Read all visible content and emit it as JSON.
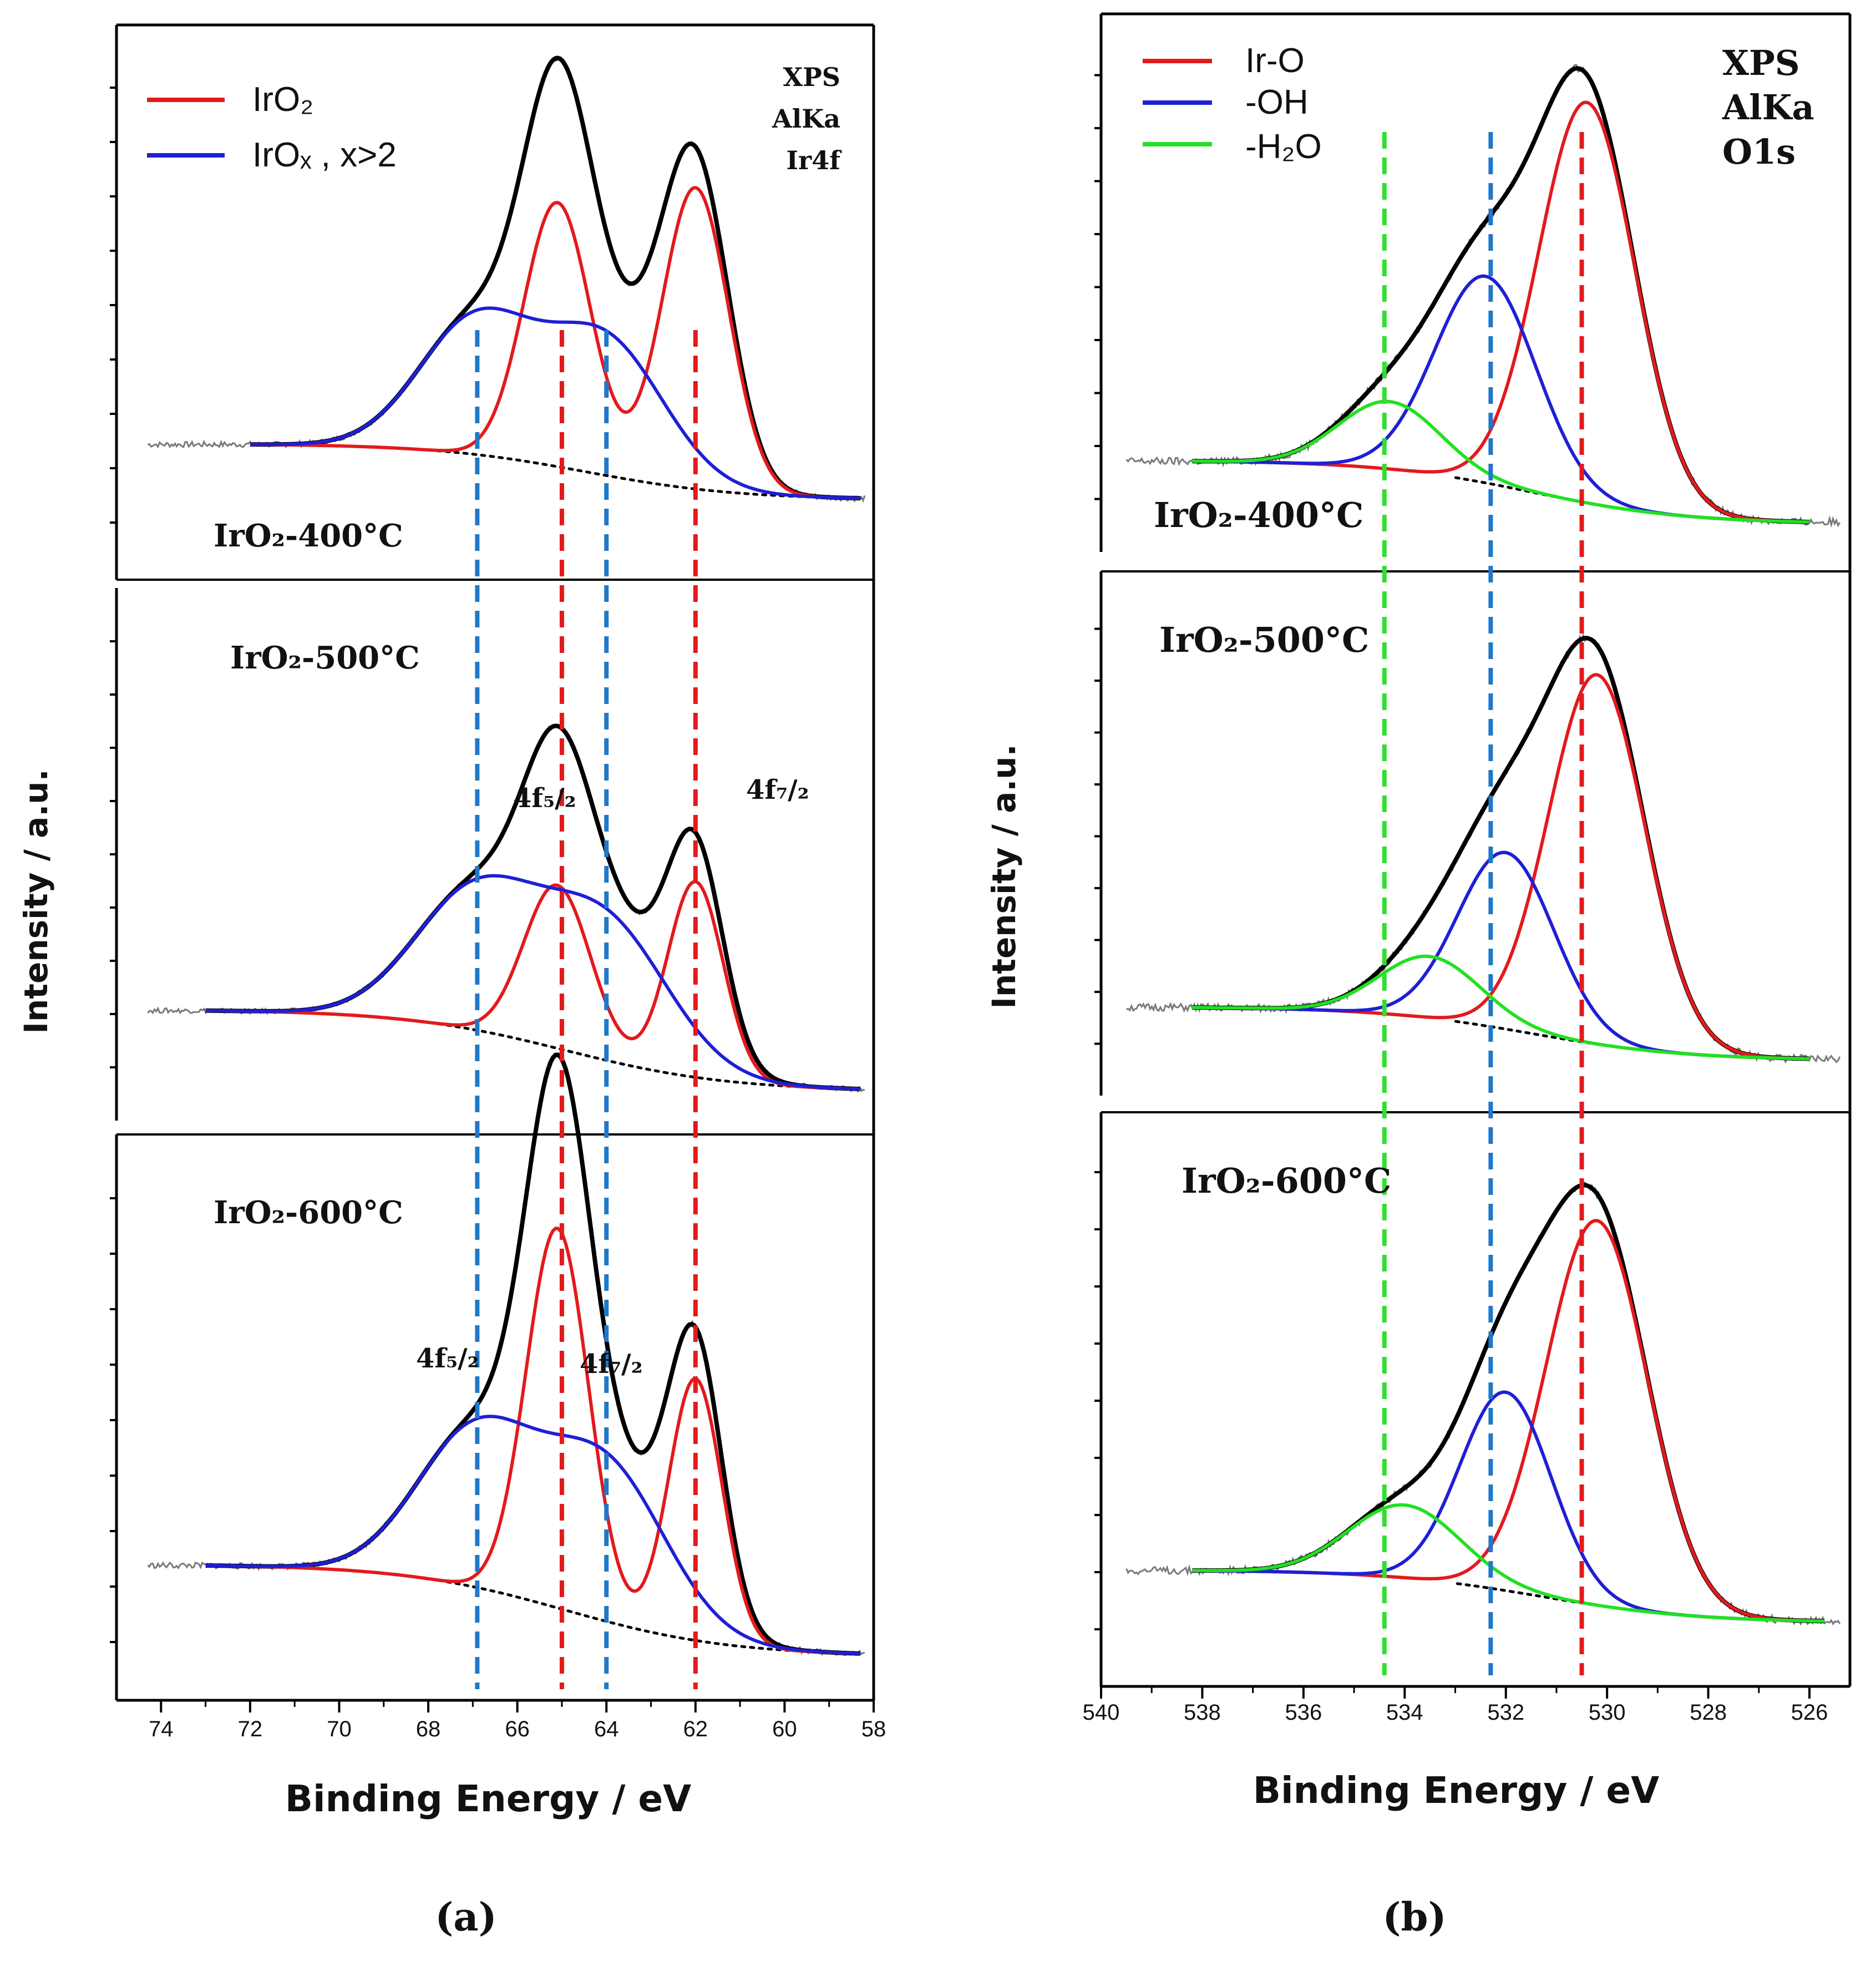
{
  "colors": {
    "irO2": "#e31a1c",
    "irOx": "#1f1fd6",
    "envelope": "#000000",
    "raw": "#7a7a7a",
    "background": "#000000",
    "ref_red": "#e31a1c",
    "ref_blue": "#1f78c8",
    "ref_green": "#33dd33",
    "ir_o": "#e31a1c",
    "oh": "#1f1fd6",
    "h2o": "#22e022"
  },
  "panel_a": {
    "caption": "(a)",
    "ylabel": "Intensity / a.u.",
    "xlabel": "Binding Energy / eV",
    "legend": [
      {
        "key": "irO2",
        "label": "IrO₂"
      },
      {
        "key": "irOx",
        "label": "IrOₓ , x>2"
      }
    ],
    "info": [
      "XPS",
      "AlKa",
      "Ir4f"
    ],
    "xticks": [
      "74",
      "72",
      "70",
      "68",
      "66",
      "64",
      "62",
      "60",
      "58"
    ],
    "subpanels": [
      {
        "label": "IrO₂-400°C"
      },
      {
        "label": "IrO₂-500°C",
        "peak_labels": [
          "4f₅/₂",
          "4f₇/₂"
        ]
      },
      {
        "label": "IrO₂-600°C",
        "peak_labels": [
          "4f₅/₂",
          "4f₇/₂"
        ]
      }
    ]
  },
  "panel_b": {
    "caption": "(b)",
    "ylabel": "Intensity / a.u.",
    "xlabel": "Binding Energy / eV",
    "legend": [
      {
        "key": "ir_o",
        "label": "Ir-O"
      },
      {
        "key": "oh",
        "label": "-OH"
      },
      {
        "key": "h2o",
        "label": "-H₂O"
      }
    ],
    "info": [
      "XPS",
      "AlKa",
      "O1s"
    ],
    "xticks": [
      "540",
      "538",
      "536",
      "534",
      "532",
      "530",
      "528",
      "526"
    ],
    "subpanels": [
      {
        "label": "IrO₂-400°C"
      },
      {
        "label": "IrO₂-500°C"
      },
      {
        "label": "IrO₂-600°C"
      }
    ]
  },
  "chart_data": [
    {
      "type": "line",
      "title": "XPS AlKa Ir4f",
      "xlabel": "Binding Energy / eV",
      "ylabel": "Intensity / a.u.",
      "xlim": [
        75,
        58
      ],
      "reference_lines_eV": [
        {
          "x": 66.9,
          "color": "blue"
        },
        {
          "x": 65.0,
          "color": "red"
        },
        {
          "x": 64.0,
          "color": "blue"
        },
        {
          "x": 62.0,
          "color": "red"
        }
      ],
      "subplots": [
        {
          "name": "IrO₂-400°C",
          "x_range": [
            72,
            58.3
          ],
          "base": 0.05,
          "tail": -0.18,
          "peaks": [
            {
              "series": "IrO₂",
              "center": 65.1,
              "height": 0.85,
              "width": 0.75
            },
            {
              "series": "IrO₂",
              "center": 62.0,
              "height": 0.97,
              "width": 0.75
            },
            {
              "series": "IrOₓ , x>2",
              "center": 66.9,
              "height": 0.43,
              "width": 1.3
            },
            {
              "series": "IrOₓ , x>2",
              "center": 64.0,
              "height": 0.43,
              "width": 1.3
            }
          ]
        },
        {
          "name": "IrO₂-500°C",
          "x_range": [
            73,
            58.3
          ],
          "base": 0.0,
          "tail": -0.3,
          "peaks": [
            {
              "series": "IrO₂",
              "center": 65.1,
              "height": 0.6,
              "width": 0.75
            },
            {
              "series": "IrO₂",
              "center": 62.0,
              "height": 0.72,
              "width": 0.62
            },
            {
              "series": "IrOₓ , x>2",
              "center": 66.9,
              "height": 0.5,
              "width": 1.4
            },
            {
              "series": "IrOₓ , x>2",
              "center": 64.0,
              "height": 0.5,
              "width": 1.4
            }
          ]
        },
        {
          "name": "IrO₂-600°C",
          "x_range": [
            73,
            58.3
          ],
          "base": 0.0,
          "tail": -0.28,
          "peaks": [
            {
              "series": "IrO₂",
              "center": 65.1,
              "height": 1.16,
              "width": 0.7
            },
            {
              "series": "IrO₂",
              "center": 62.0,
              "height": 0.8,
              "width": 0.6
            },
            {
              "series": "IrOₓ , x>2",
              "center": 66.9,
              "height": 0.47,
              "width": 1.35
            },
            {
              "series": "IrOₓ , x>2",
              "center": 64.0,
              "height": 0.47,
              "width": 1.35
            }
          ]
        }
      ]
    },
    {
      "type": "line",
      "title": "XPS AlKa O1s",
      "xlabel": "Binding Energy / eV",
      "ylabel": "Intensity / a.u.",
      "xlim": [
        540,
        525.2
      ],
      "reference_lines_eV": [
        {
          "x": 534.4,
          "color": "green"
        },
        {
          "x": 532.3,
          "color": "blue"
        },
        {
          "x": 530.5,
          "color": "red"
        }
      ],
      "subplots": [
        {
          "name": "IrO₂-400°C",
          "x_range": [
            538.2,
            526
          ],
          "base": 0.0,
          "tail": -0.15,
          "peaks": [
            {
              "series": "Ir-O",
              "center": 530.4,
              "height": 0.95,
              "width": 0.95
            },
            {
              "series": "-OH",
              "center": 532.4,
              "height": 0.49,
              "width": 1.0
            },
            {
              "series": "-H₂O",
              "center": 534.3,
              "height": 0.16,
              "width": 1.0
            }
          ]
        },
        {
          "name": "IrO₂-500°C",
          "x_range": [
            538.2,
            526
          ],
          "base": 0.0,
          "tail": -0.13,
          "peaks": [
            {
              "series": "Ir-O",
              "center": 530.2,
              "height": 0.9,
              "width": 0.95
            },
            {
              "series": "-OH",
              "center": 532.0,
              "height": 0.43,
              "width": 0.95
            },
            {
              "series": "-H₂O",
              "center": 533.5,
              "height": 0.15,
              "width": 1.0
            }
          ]
        },
        {
          "name": "IrO₂-600°C",
          "x_range": [
            538.2,
            525.7
          ],
          "base": 0.0,
          "tail": -0.13,
          "peaks": [
            {
              "series": "Ir-O",
              "center": 530.2,
              "height": 0.95,
              "width": 1.0
            },
            {
              "series": "-OH",
              "center": 532.0,
              "height": 0.49,
              "width": 0.9
            },
            {
              "series": "-H₂O",
              "center": 534.0,
              "height": 0.18,
              "width": 1.1
            }
          ]
        }
      ]
    }
  ]
}
